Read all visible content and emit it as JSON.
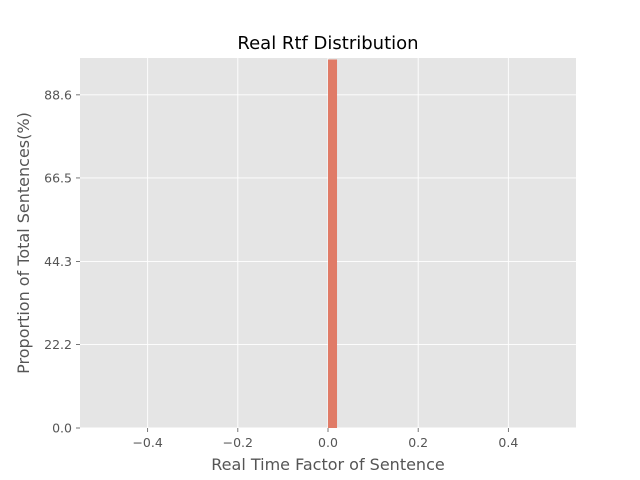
{
  "chart_data": {
    "type": "bar",
    "title": "Real Rtf Distribution",
    "xlabel": "Real  Time  Factor  of  Sentence",
    "ylabel": "Proportion  of  Total  Sentences(%)",
    "xlim": [
      -0.55,
      0.55
    ],
    "ylim": [
      0,
      98.4
    ],
    "xticks": [
      -0.4,
      -0.2,
      0.0,
      0.2,
      0.4
    ],
    "xtick_labels": [
      "−0.4",
      "−0.2",
      "0.0",
      "0.2",
      "0.4"
    ],
    "yticks": [
      0.0,
      22.2,
      44.3,
      66.5,
      88.6
    ],
    "ytick_labels": [
      "0.0",
      "22.2",
      "44.3",
      "66.5",
      "88.6"
    ],
    "grid": true,
    "bars": [
      {
        "x_start": 0.0,
        "x_end": 0.02,
        "value": 98.0
      }
    ],
    "colors": {
      "background": "#e5e5e5",
      "grid": "#ffffff",
      "bar": "#e07b67",
      "text": "#555555"
    }
  }
}
